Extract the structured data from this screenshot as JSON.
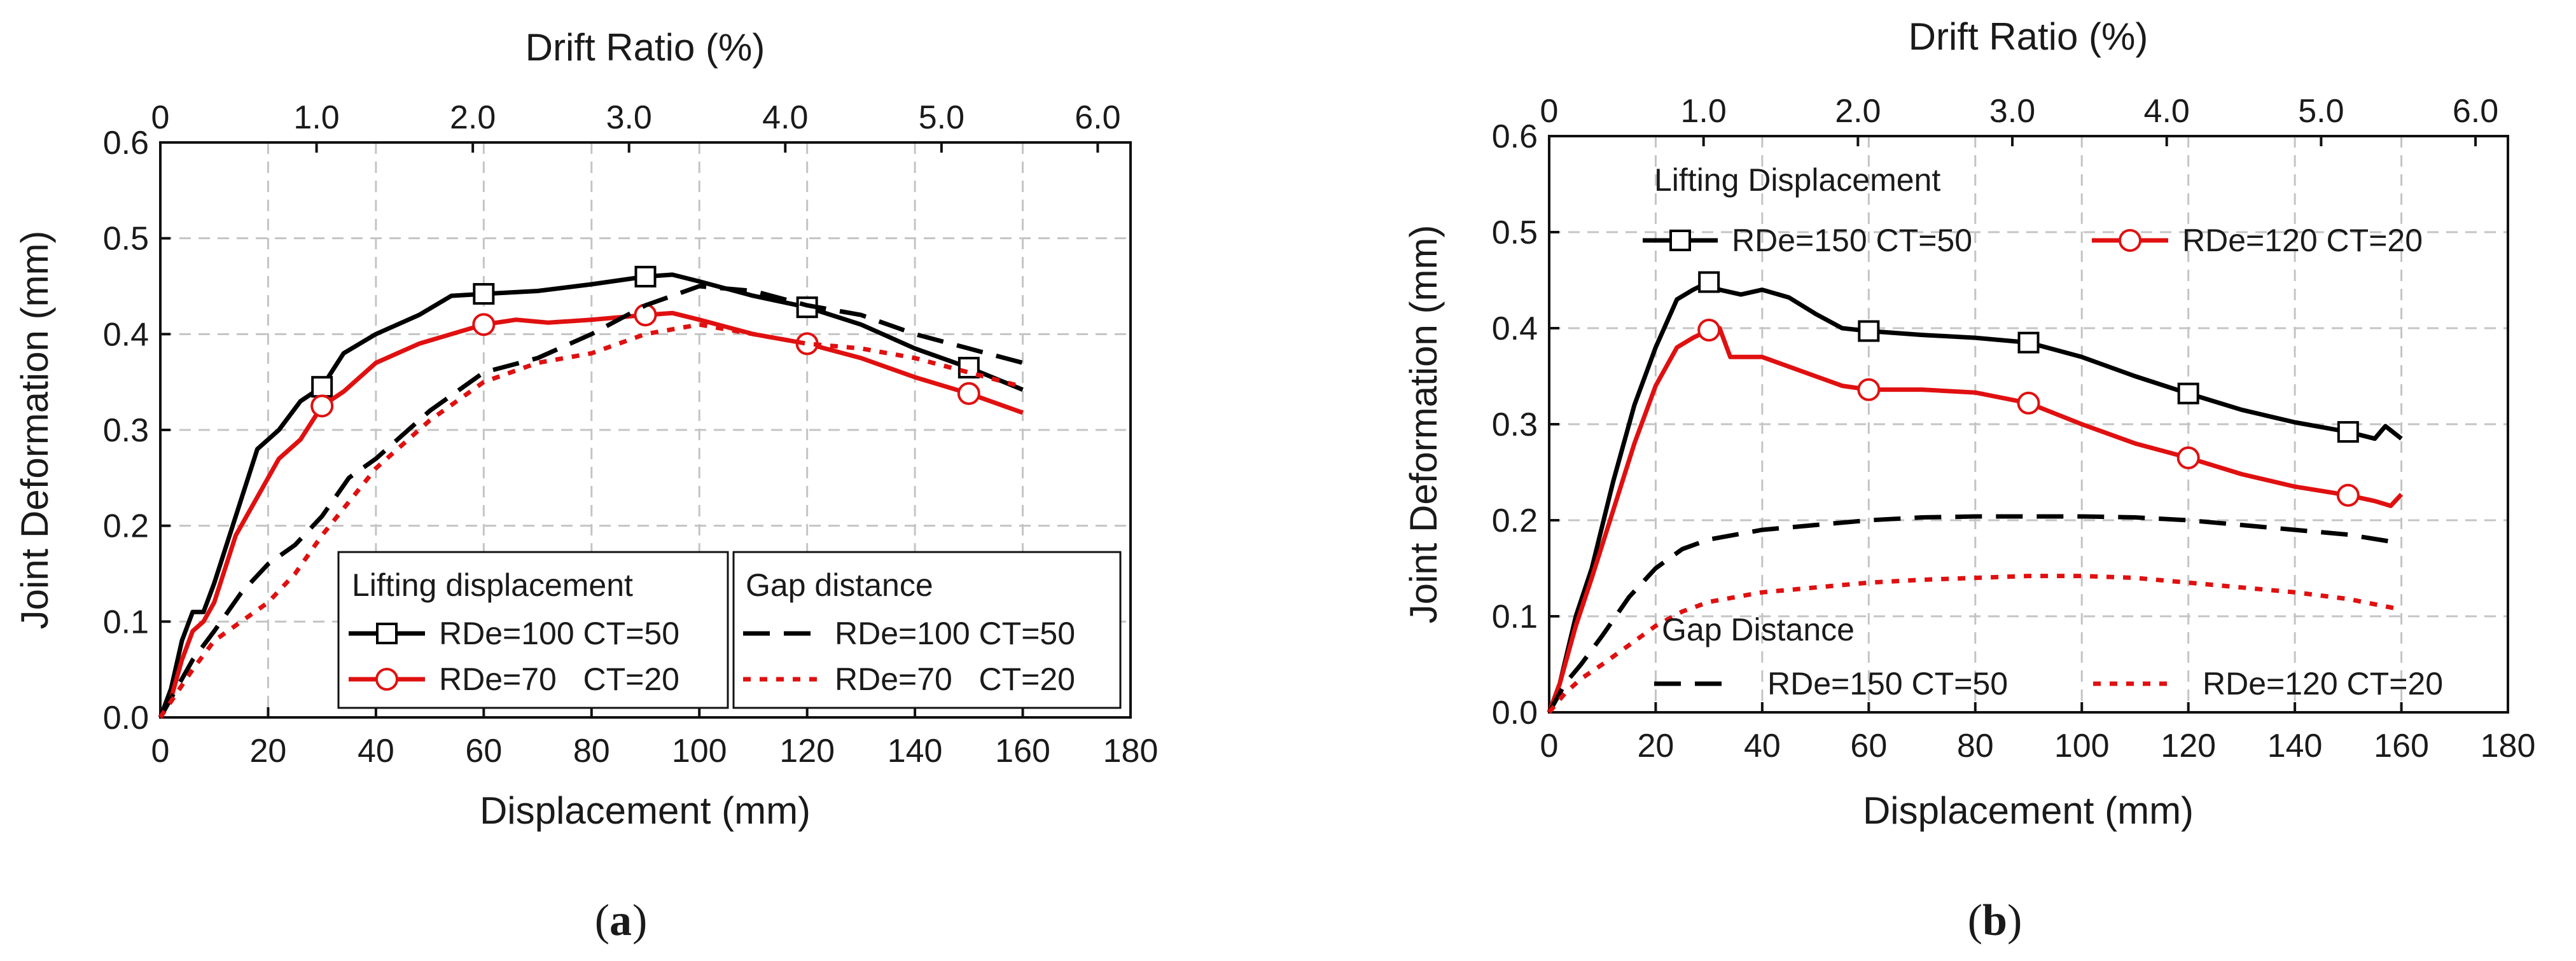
{
  "chart_data": [
    {
      "type": "line",
      "caption_letter": "a",
      "xlabel": "Displacement (mm)",
      "ylabel": "Joint Deformation (mm)",
      "x2label": "Drift Ratio (%)",
      "xlim": [
        0,
        180
      ],
      "ylim": [
        0,
        0.6
      ],
      "xticks": [
        "0",
        "20",
        "40",
        "60",
        "80",
        "100",
        "120",
        "140",
        "160",
        "180"
      ],
      "yticks": [
        "0.0",
        "0.1",
        "0.2",
        "0.3",
        "0.4",
        "0.5",
        "0.6"
      ],
      "x2ticks": [
        "0",
        "1.0",
        "2.0",
        "3.0",
        "4.0",
        "5.0",
        "6.0"
      ],
      "x2_per_x": 0.0345,
      "grid": true,
      "legend_groups": [
        {
          "title": "Lifting displacement",
          "entries": [
            "RDe=100 CT=50",
            "RDe=70   CT=20"
          ]
        },
        {
          "title": "Gap distance",
          "entries": [
            "RDe=100 CT=50",
            "RDe=70   CT=20"
          ]
        }
      ],
      "legend_position": "bottom-center",
      "series": [
        {
          "name": "Lifting displacement RDe=100 CT=50",
          "color": "#000000",
          "style": "solid",
          "marker": "square",
          "x": [
            0,
            2,
            4,
            6,
            8,
            10,
            14,
            18,
            22,
            26,
            30,
            34,
            40,
            48,
            54,
            60,
            70,
            80,
            90,
            95,
            100,
            110,
            120,
            130,
            140,
            150,
            160
          ],
          "y": [
            0,
            0.03,
            0.08,
            0.11,
            0.11,
            0.14,
            0.21,
            0.28,
            0.3,
            0.33,
            0.345,
            0.38,
            0.4,
            0.42,
            0.44,
            0.442,
            0.445,
            0.452,
            0.46,
            0.462,
            0.455,
            0.44,
            0.428,
            0.41,
            0.385,
            0.365,
            0.342
          ]
        },
        {
          "name": "Lifting displacement RDe=70 CT=20",
          "color": "#e01010",
          "style": "solid",
          "marker": "circle",
          "x": [
            0,
            2,
            4,
            6,
            8,
            10,
            14,
            18,
            22,
            26,
            30,
            34,
            40,
            48,
            54,
            60,
            66,
            72,
            80,
            90,
            95,
            100,
            110,
            120,
            130,
            140,
            150,
            160
          ],
          "y": [
            0,
            0.02,
            0.06,
            0.09,
            0.1,
            0.12,
            0.19,
            0.23,
            0.27,
            0.29,
            0.325,
            0.34,
            0.37,
            0.39,
            0.4,
            0.41,
            0.415,
            0.412,
            0.415,
            0.42,
            0.422,
            0.415,
            0.4,
            0.39,
            0.375,
            0.355,
            0.338,
            0.318
          ]
        },
        {
          "name": "Gap distance RDe=100 CT=50",
          "color": "#000000",
          "style": "dash",
          "marker": "none",
          "x": [
            0,
            3,
            6,
            10,
            15,
            20,
            25,
            30,
            35,
            40,
            50,
            60,
            70,
            80,
            90,
            100,
            110,
            120,
            130,
            140,
            150,
            160
          ],
          "y": [
            0,
            0.03,
            0.06,
            0.09,
            0.13,
            0.16,
            0.18,
            0.21,
            0.25,
            0.27,
            0.32,
            0.36,
            0.375,
            0.4,
            0.43,
            0.45,
            0.445,
            0.43,
            0.42,
            0.4,
            0.385,
            0.37
          ]
        },
        {
          "name": "Gap distance RDe=70 CT=20",
          "color": "#e01010",
          "style": "dot",
          "marker": "none",
          "x": [
            0,
            3,
            6,
            10,
            15,
            20,
            25,
            30,
            40,
            50,
            60,
            70,
            80,
            90,
            100,
            110,
            120,
            130,
            140,
            150,
            160
          ],
          "y": [
            0,
            0.025,
            0.05,
            0.08,
            0.1,
            0.12,
            0.15,
            0.19,
            0.26,
            0.31,
            0.35,
            0.37,
            0.38,
            0.4,
            0.41,
            0.4,
            0.39,
            0.385,
            0.375,
            0.36,
            0.345
          ]
        }
      ]
    },
    {
      "type": "line",
      "caption_letter": "b",
      "xlabel": "Displacement (mm)",
      "ylabel": "Joint Deformation (mm)",
      "x2label": "Drift Ratio (%)",
      "xlim": [
        0,
        180
      ],
      "ylim": [
        0,
        0.6
      ],
      "xticks": [
        "0",
        "20",
        "40",
        "60",
        "80",
        "100",
        "120",
        "140",
        "160",
        "180"
      ],
      "yticks": [
        "0.0",
        "0.1",
        "0.2",
        "0.3",
        "0.4",
        "0.5",
        "0.6"
      ],
      "x2ticks": [
        "0",
        "1.0",
        "2.0",
        "3.0",
        "4.0",
        "5.0",
        "6.0"
      ],
      "x2_per_x": 0.0345,
      "grid": true,
      "legend_groups": [
        {
          "title": "Lifting Displacement",
          "entries": [
            "RDe=150 CT=50",
            "RDe=120 CT=20"
          ]
        },
        {
          "title": "Gap Distance",
          "entries": [
            "RDe=150 CT=50",
            "RDe=120 CT=20"
          ]
        }
      ],
      "legend_position": "inside-top and inside-bottom",
      "series": [
        {
          "name": "Lifting Displacement RDe=150 CT=50",
          "color": "#000000",
          "style": "solid",
          "marker": "square",
          "x": [
            0,
            2,
            5,
            8,
            12,
            16,
            20,
            24,
            27,
            30,
            32,
            36,
            40,
            45,
            50,
            55,
            60,
            70,
            80,
            90,
            100,
            110,
            120,
            130,
            140,
            150,
            155,
            157,
            160
          ],
          "y": [
            0,
            0.03,
            0.1,
            0.15,
            0.24,
            0.32,
            0.38,
            0.43,
            0.44,
            0.448,
            0.44,
            0.435,
            0.44,
            0.432,
            0.415,
            0.4,
            0.397,
            0.393,
            0.39,
            0.385,
            0.37,
            0.35,
            0.332,
            0.315,
            0.302,
            0.292,
            0.285,
            0.298,
            0.285
          ]
        },
        {
          "name": "Lifting Displacement RDe=120 CT=20",
          "color": "#e01010",
          "style": "solid",
          "marker": "circle",
          "x": [
            0,
            2,
            5,
            8,
            12,
            16,
            20,
            24,
            27,
            30,
            32,
            34,
            40,
            45,
            50,
            55,
            60,
            70,
            80,
            90,
            100,
            110,
            120,
            130,
            140,
            150,
            155,
            158,
            160
          ],
          "y": [
            0,
            0.03,
            0.09,
            0.14,
            0.21,
            0.28,
            0.34,
            0.38,
            0.39,
            0.398,
            0.4,
            0.37,
            0.37,
            0.36,
            0.35,
            0.34,
            0.336,
            0.336,
            0.333,
            0.322,
            0.3,
            0.28,
            0.265,
            0.248,
            0.235,
            0.226,
            0.22,
            0.215,
            0.227
          ]
        },
        {
          "name": "Gap Distance RDe=150 CT=50",
          "color": "#000000",
          "style": "dash",
          "marker": "none",
          "x": [
            0,
            3,
            6,
            10,
            15,
            20,
            25,
            30,
            40,
            50,
            60,
            70,
            80,
            90,
            100,
            110,
            120,
            130,
            140,
            150,
            160
          ],
          "y": [
            0,
            0.03,
            0.05,
            0.08,
            0.12,
            0.15,
            0.17,
            0.18,
            0.19,
            0.195,
            0.2,
            0.203,
            0.204,
            0.204,
            0.204,
            0.203,
            0.2,
            0.195,
            0.19,
            0.185,
            0.176
          ]
        },
        {
          "name": "Gap Distance RDe=120 CT=20",
          "color": "#e01010",
          "style": "dot",
          "marker": "none",
          "x": [
            0,
            3,
            6,
            10,
            15,
            20,
            25,
            30,
            40,
            50,
            60,
            70,
            80,
            90,
            100,
            110,
            120,
            130,
            140,
            150,
            160
          ],
          "y": [
            0,
            0.02,
            0.035,
            0.05,
            0.07,
            0.09,
            0.105,
            0.115,
            0.125,
            0.13,
            0.135,
            0.138,
            0.14,
            0.142,
            0.142,
            0.14,
            0.135,
            0.13,
            0.125,
            0.118,
            0.107
          ]
        }
      ]
    }
  ]
}
